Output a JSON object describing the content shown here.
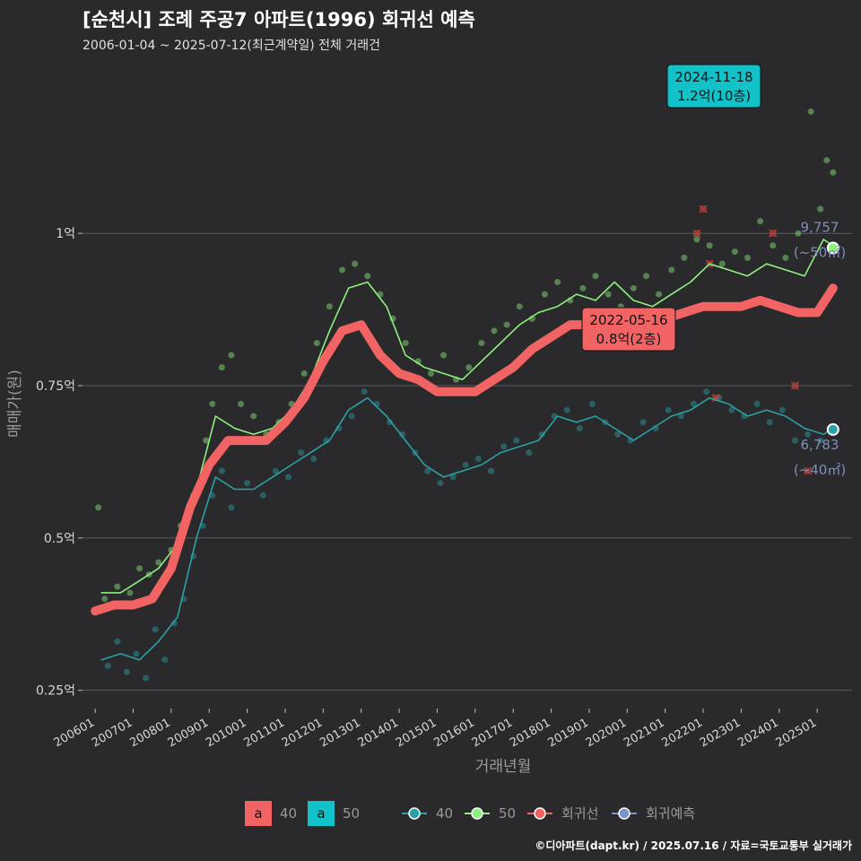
{
  "header": {
    "title": "[순천시] 조례 주공7 아파트(1996) 회귀선 예측",
    "subtitle": "2006-01-04 ~ 2025-07-12(최근계약일) 전체 거래건"
  },
  "caption": "©디아파트(dapt.kr) / 2025.07.16 / 자료=국토교통부 실거래가",
  "colors": {
    "background": "#2a2a2c",
    "grid": "#5a5a5c",
    "s40": "#2aa1a6",
    "s50": "#8ef07e",
    "regression": "#f26464",
    "forecast": "#7b93c9",
    "label_teal": "#11c2c8",
    "end_label": "#7f8fb8"
  },
  "chart_data": {
    "type": "scatter",
    "title": "[순천시] 조례 주공7 아파트(1996) 회귀선 예측",
    "subtitle": "2006-01-04 ~ 2025-07-12(최근계약일) 전체 거래건",
    "xlabel": "거래년월",
    "ylabel": "매매가(원)",
    "ylim": [
      0.22,
      1.28
    ],
    "xlim": [
      "2005-09",
      "2025-12"
    ],
    "grid": true,
    "x_ticks": [
      "200601",
      "200701",
      "200801",
      "200901",
      "201001",
      "201101",
      "201201",
      "201301",
      "201401",
      "201501",
      "201601",
      "201701",
      "201801",
      "201901",
      "202001",
      "202101",
      "202201",
      "202301",
      "202401",
      "202501"
    ],
    "y_ticks": [
      {
        "value": 0.25,
        "label": "0.25억"
      },
      {
        "value": 0.5,
        "label": "0.5억"
      },
      {
        "value": 0.75,
        "label": "0.75억"
      },
      {
        "value": 1.0,
        "label": "1억"
      }
    ],
    "series": [
      {
        "name": "40",
        "color": "#2aa1a6",
        "points": [
          [
            "2006-03",
            0.3
          ],
          [
            "2006-09",
            0.31
          ],
          [
            "2007-03",
            0.3
          ],
          [
            "2007-09",
            0.33
          ],
          [
            "2008-03",
            0.37
          ],
          [
            "2008-09",
            0.5
          ],
          [
            "2009-03",
            0.6
          ],
          [
            "2009-09",
            0.58
          ],
          [
            "2010-03",
            0.58
          ],
          [
            "2010-09",
            0.6
          ],
          [
            "2011-03",
            0.62
          ],
          [
            "2011-09",
            0.64
          ],
          [
            "2012-03",
            0.66
          ],
          [
            "2012-09",
            0.71
          ],
          [
            "2013-03",
            0.73
          ],
          [
            "2013-09",
            0.7
          ],
          [
            "2014-03",
            0.66
          ],
          [
            "2014-09",
            0.62
          ],
          [
            "2015-03",
            0.6
          ],
          [
            "2015-09",
            0.61
          ],
          [
            "2016-03",
            0.62
          ],
          [
            "2016-09",
            0.64
          ],
          [
            "2017-03",
            0.65
          ],
          [
            "2017-09",
            0.66
          ],
          [
            "2018-03",
            0.7
          ],
          [
            "2018-09",
            0.69
          ],
          [
            "2019-03",
            0.7
          ],
          [
            "2019-09",
            0.68
          ],
          [
            "2020-03",
            0.66
          ],
          [
            "2020-09",
            0.68
          ],
          [
            "2021-03",
            0.7
          ],
          [
            "2021-09",
            0.71
          ],
          [
            "2022-03",
            0.73
          ],
          [
            "2022-09",
            0.72
          ],
          [
            "2023-03",
            0.7
          ],
          [
            "2023-09",
            0.71
          ],
          [
            "2024-03",
            0.7
          ],
          [
            "2024-09",
            0.68
          ],
          [
            "2025-03",
            0.67
          ],
          [
            "2025-06",
            0.68
          ]
        ]
      },
      {
        "name": "50",
        "color": "#8ef07e",
        "points": [
          [
            "2006-03",
            0.41
          ],
          [
            "2006-09",
            0.41
          ],
          [
            "2007-03",
            0.43
          ],
          [
            "2007-09",
            0.45
          ],
          [
            "2008-03",
            0.49
          ],
          [
            "2008-09",
            0.58
          ],
          [
            "2009-03",
            0.7
          ],
          [
            "2009-09",
            0.68
          ],
          [
            "2010-03",
            0.67
          ],
          [
            "2010-09",
            0.68
          ],
          [
            "2011-03",
            0.71
          ],
          [
            "2011-09",
            0.76
          ],
          [
            "2012-03",
            0.84
          ],
          [
            "2012-09",
            0.91
          ],
          [
            "2013-03",
            0.92
          ],
          [
            "2013-09",
            0.88
          ],
          [
            "2014-03",
            0.8
          ],
          [
            "2014-09",
            0.78
          ],
          [
            "2015-03",
            0.77
          ],
          [
            "2015-09",
            0.76
          ],
          [
            "2016-03",
            0.79
          ],
          [
            "2016-09",
            0.82
          ],
          [
            "2017-03",
            0.85
          ],
          [
            "2017-09",
            0.87
          ],
          [
            "2018-03",
            0.88
          ],
          [
            "2018-09",
            0.9
          ],
          [
            "2019-03",
            0.89
          ],
          [
            "2019-09",
            0.92
          ],
          [
            "2020-03",
            0.89
          ],
          [
            "2020-09",
            0.88
          ],
          [
            "2021-03",
            0.9
          ],
          [
            "2021-09",
            0.92
          ],
          [
            "2022-03",
            0.95
          ],
          [
            "2022-09",
            0.94
          ],
          [
            "2023-03",
            0.93
          ],
          [
            "2023-09",
            0.95
          ],
          [
            "2024-03",
            0.94
          ],
          [
            "2024-09",
            0.93
          ],
          [
            "2025-03",
            0.99
          ],
          [
            "2025-06",
            0.98
          ]
        ]
      },
      {
        "name": "회귀선",
        "color": "#f26464",
        "points": [
          [
            "2006-01",
            0.38
          ],
          [
            "2006-07",
            0.39
          ],
          [
            "2007-01",
            0.39
          ],
          [
            "2007-07",
            0.4
          ],
          [
            "2008-01",
            0.45
          ],
          [
            "2008-07",
            0.55
          ],
          [
            "2009-01",
            0.62
          ],
          [
            "2009-07",
            0.66
          ],
          [
            "2010-01",
            0.66
          ],
          [
            "2010-07",
            0.66
          ],
          [
            "2011-01",
            0.69
          ],
          [
            "2011-07",
            0.73
          ],
          [
            "2012-01",
            0.79
          ],
          [
            "2012-07",
            0.84
          ],
          [
            "2013-01",
            0.85
          ],
          [
            "2013-07",
            0.8
          ],
          [
            "2014-01",
            0.77
          ],
          [
            "2014-07",
            0.76
          ],
          [
            "2015-01",
            0.74
          ],
          [
            "2015-07",
            0.74
          ],
          [
            "2016-01",
            0.74
          ],
          [
            "2016-07",
            0.76
          ],
          [
            "2017-01",
            0.78
          ],
          [
            "2017-07",
            0.81
          ],
          [
            "2018-01",
            0.83
          ],
          [
            "2018-07",
            0.85
          ],
          [
            "2019-01",
            0.85
          ],
          [
            "2019-07",
            0.85
          ],
          [
            "2020-01",
            0.83
          ],
          [
            "2020-07",
            0.84
          ],
          [
            "2021-01",
            0.86
          ],
          [
            "2021-07",
            0.87
          ],
          [
            "2022-01",
            0.88
          ],
          [
            "2022-07",
            0.88
          ],
          [
            "2023-01",
            0.88
          ],
          [
            "2023-07",
            0.89
          ],
          [
            "2024-01",
            0.88
          ],
          [
            "2024-07",
            0.87
          ],
          [
            "2025-01",
            0.87
          ],
          [
            "2025-06",
            0.91
          ]
        ]
      },
      {
        "name": "회귀예측",
        "color": "#7b93c9",
        "points": []
      }
    ],
    "scatter_40": [
      [
        "2006-05",
        0.29
      ],
      [
        "2006-08",
        0.33
      ],
      [
        "2006-11",
        0.28
      ],
      [
        "2007-02",
        0.31
      ],
      [
        "2007-05",
        0.27
      ],
      [
        "2007-08",
        0.35
      ],
      [
        "2007-11",
        0.3
      ],
      [
        "2008-02",
        0.36
      ],
      [
        "2008-05",
        0.4
      ],
      [
        "2008-08",
        0.47
      ],
      [
        "2008-11",
        0.52
      ],
      [
        "2009-02",
        0.57
      ],
      [
        "2009-05",
        0.61
      ],
      [
        "2009-08",
        0.55
      ],
      [
        "2010-01",
        0.59
      ],
      [
        "2010-06",
        0.57
      ],
      [
        "2010-10",
        0.61
      ],
      [
        "2011-02",
        0.6
      ],
      [
        "2011-06",
        0.64
      ],
      [
        "2011-10",
        0.63
      ],
      [
        "2012-02",
        0.66
      ],
      [
        "2012-06",
        0.68
      ],
      [
        "2012-10",
        0.7
      ],
      [
        "2013-02",
        0.74
      ],
      [
        "2013-06",
        0.72
      ],
      [
        "2013-10",
        0.69
      ],
      [
        "2014-02",
        0.67
      ],
      [
        "2014-06",
        0.64
      ],
      [
        "2014-10",
        0.61
      ],
      [
        "2015-02",
        0.59
      ],
      [
        "2015-06",
        0.6
      ],
      [
        "2015-10",
        0.62
      ],
      [
        "2016-02",
        0.63
      ],
      [
        "2016-06",
        0.61
      ],
      [
        "2016-10",
        0.65
      ],
      [
        "2017-02",
        0.66
      ],
      [
        "2017-06",
        0.64
      ],
      [
        "2017-10",
        0.67
      ],
      [
        "2018-02",
        0.7
      ],
      [
        "2018-06",
        0.71
      ],
      [
        "2018-10",
        0.68
      ],
      [
        "2019-02",
        0.72
      ],
      [
        "2019-06",
        0.69
      ],
      [
        "2019-10",
        0.67
      ],
      [
        "2020-02",
        0.66
      ],
      [
        "2020-06",
        0.69
      ],
      [
        "2020-10",
        0.68
      ],
      [
        "2021-02",
        0.71
      ],
      [
        "2021-06",
        0.7
      ],
      [
        "2021-10",
        0.72
      ],
      [
        "2022-02",
        0.74
      ],
      [
        "2022-06",
        0.73
      ],
      [
        "2022-10",
        0.71
      ],
      [
        "2023-02",
        0.7
      ],
      [
        "2023-06",
        0.72
      ],
      [
        "2023-10",
        0.69
      ],
      [
        "2024-02",
        0.71
      ],
      [
        "2024-06",
        0.66
      ],
      [
        "2024-10",
        0.67
      ],
      [
        "2025-02",
        0.66
      ],
      [
        "2025-05",
        0.68
      ]
    ],
    "scatter_50": [
      [
        "2006-02",
        0.55
      ],
      [
        "2006-04",
        0.4
      ],
      [
        "2006-08",
        0.42
      ],
      [
        "2006-12",
        0.41
      ],
      [
        "2007-03",
        0.45
      ],
      [
        "2007-06",
        0.44
      ],
      [
        "2007-09",
        0.46
      ],
      [
        "2008-01",
        0.48
      ],
      [
        "2008-04",
        0.52
      ],
      [
        "2008-08",
        0.57
      ],
      [
        "2008-12",
        0.66
      ],
      [
        "2009-02",
        0.72
      ],
      [
        "2009-05",
        0.78
      ],
      [
        "2009-08",
        0.8
      ],
      [
        "2009-11",
        0.72
      ],
      [
        "2010-03",
        0.7
      ],
      [
        "2010-07",
        0.67
      ],
      [
        "2010-11",
        0.69
      ],
      [
        "2011-03",
        0.72
      ],
      [
        "2011-07",
        0.77
      ],
      [
        "2011-11",
        0.82
      ],
      [
        "2012-03",
        0.88
      ],
      [
        "2012-07",
        0.94
      ],
      [
        "2012-11",
        0.95
      ],
      [
        "2013-03",
        0.93
      ],
      [
        "2013-07",
        0.9
      ],
      [
        "2013-11",
        0.86
      ],
      [
        "2014-03",
        0.82
      ],
      [
        "2014-07",
        0.79
      ],
      [
        "2014-11",
        0.77
      ],
      [
        "2015-03",
        0.8
      ],
      [
        "2015-07",
        0.76
      ],
      [
        "2015-11",
        0.78
      ],
      [
        "2016-03",
        0.82
      ],
      [
        "2016-07",
        0.84
      ],
      [
        "2016-11",
        0.85
      ],
      [
        "2017-03",
        0.88
      ],
      [
        "2017-07",
        0.86
      ],
      [
        "2017-11",
        0.9
      ],
      [
        "2018-03",
        0.92
      ],
      [
        "2018-07",
        0.89
      ],
      [
        "2018-11",
        0.91
      ],
      [
        "2019-03",
        0.93
      ],
      [
        "2019-07",
        0.9
      ],
      [
        "2019-11",
        0.88
      ],
      [
        "2020-03",
        0.91
      ],
      [
        "2020-07",
        0.93
      ],
      [
        "2020-11",
        0.9
      ],
      [
        "2021-03",
        0.94
      ],
      [
        "2021-07",
        0.96
      ],
      [
        "2021-11",
        0.99
      ],
      [
        "2022-03",
        0.98
      ],
      [
        "2022-07",
        0.95
      ],
      [
        "2022-11",
        0.97
      ],
      [
        "2023-03",
        0.96
      ],
      [
        "2023-07",
        1.02
      ],
      [
        "2023-11",
        0.98
      ],
      [
        "2024-03",
        0.96
      ],
      [
        "2024-07",
        1.0
      ],
      [
        "2024-11",
        1.2
      ],
      [
        "2025-02",
        1.04
      ],
      [
        "2025-04",
        1.12
      ],
      [
        "2025-06",
        1.1
      ]
    ],
    "outliers": [
      [
        "2021-11",
        1.0
      ],
      [
        "2022-01",
        1.04
      ],
      [
        "2022-03",
        0.95
      ],
      [
        "2022-05",
        0.73
      ],
      [
        "2023-11",
        1.0
      ],
      [
        "2024-06",
        0.75
      ],
      [
        "2024-10",
        0.61
      ]
    ],
    "annotations": [
      {
        "date": "2024-11-18",
        "line1": "2024-11-18",
        "line2": "1.2억(10층)",
        "style": "teal",
        "x": "2023-11",
        "y": 1.2
      },
      {
        "date": "2022-05-16",
        "line1": "2022-05-16",
        "line2": "0.8억(2층)",
        "style": "red",
        "x": "2020-05",
        "y": 0.8
      }
    ],
    "end_labels": [
      {
        "value": "9,757",
        "sub": "(~50㎡)",
        "x": "2025-06",
        "y": 0.976,
        "color": "#8ef07e"
      },
      {
        "value": "6,783",
        "sub": "(~40㎡)",
        "x": "2025-06",
        "y": 0.678,
        "color": "#2aa1a6"
      }
    ]
  },
  "legend": {
    "label_items": [
      {
        "glyph": "a",
        "label": "40",
        "color": "#f26464"
      },
      {
        "glyph": "a",
        "label": "50",
        "color": "#11c2c8"
      }
    ],
    "line_items": [
      {
        "label": "40",
        "color": "#2aa1a6"
      },
      {
        "label": "50",
        "color": "#8ef07e"
      },
      {
        "label": "회귀선",
        "color": "#f26464"
      },
      {
        "label": "회귀예측",
        "color": "#7b93c9"
      }
    ]
  }
}
